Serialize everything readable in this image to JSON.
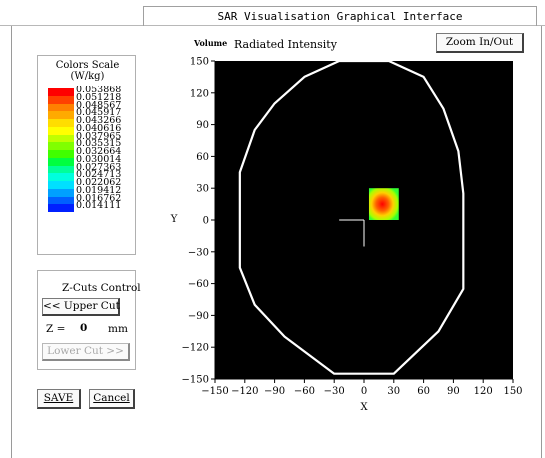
{
  "window": {
    "title": "SAR Visualisation Graphical Interface"
  },
  "color_scale": {
    "title_line1": "Colors Scale",
    "title_line2": "(W/kg)",
    "entries": [
      {
        "label": "0.053868",
        "color": "#ff0000"
      },
      {
        "label": "0.051218",
        "color": "#ff4000"
      },
      {
        "label": "0.048567",
        "color": "#ff8000"
      },
      {
        "label": "0.045917",
        "color": "#ffaa00"
      },
      {
        "label": "0.043266",
        "color": "#ffdd00"
      },
      {
        "label": "0.040616",
        "color": "#ffff00"
      },
      {
        "label": "0.037965",
        "color": "#bfff00"
      },
      {
        "label": "0.035315",
        "color": "#80ff00"
      },
      {
        "label": "0.032664",
        "color": "#40ff00"
      },
      {
        "label": "0.030014",
        "color": "#00ff40"
      },
      {
        "label": "0.027363",
        "color": "#00ff99"
      },
      {
        "label": "0.024713",
        "color": "#00ffdd"
      },
      {
        "label": "0.022062",
        "color": "#00e0ff"
      },
      {
        "label": "0.019412",
        "color": "#00a0ff"
      },
      {
        "label": "0.016762",
        "color": "#0060ff"
      },
      {
        "label": "0.014111",
        "color": "#0020ff"
      }
    ]
  },
  "zcuts": {
    "title": "Z-Cuts Control",
    "upper_label": "<< Upper Cut",
    "z_prefix": "Z =",
    "z_value": "0",
    "z_unit": "mm",
    "lower_label": "Lower Cut >>"
  },
  "actions": {
    "save_label": "SAVE",
    "cancel_label": "Cancel"
  },
  "header": {
    "volume_label": "Volume",
    "quantity_label": "Radiated Intensity",
    "zoom_label": "Zoom In/Out"
  },
  "chart_data": {
    "type": "heatmap",
    "title": "",
    "xlabel": "X",
    "ylabel": "Y",
    "xlim": [
      -150,
      150
    ],
    "ylim": [
      -150,
      150
    ],
    "xticks": [
      -150,
      -120,
      -90,
      -60,
      -30,
      0,
      30,
      60,
      90,
      120,
      150
    ],
    "yticks": [
      -150,
      -120,
      -90,
      -60,
      -30,
      0,
      30,
      60,
      90,
      120,
      150
    ],
    "background": "#000000",
    "outline_color": "#ffffff",
    "outline": [
      [
        -25,
        150
      ],
      [
        25,
        150
      ],
      [
        60,
        135
      ],
      [
        80,
        105
      ],
      [
        95,
        65
      ],
      [
        100,
        25
      ],
      [
        100,
        -65
      ],
      [
        75,
        -105
      ],
      [
        30,
        -145
      ],
      [
        -30,
        -145
      ],
      [
        -80,
        -110
      ],
      [
        -110,
        -80
      ],
      [
        -125,
        -45
      ],
      [
        -125,
        45
      ],
      [
        -110,
        85
      ],
      [
        -90,
        110
      ],
      [
        -60,
        135
      ]
    ],
    "crosshair": {
      "x": 0,
      "y": 0,
      "x_from": -25,
      "y_to": -25
    },
    "hotspot": {
      "x_range": [
        5,
        35
      ],
      "y_range": [
        0,
        30
      ],
      "peak": [
        19,
        15
      ],
      "edge_color": "#33ff33",
      "peak_color": "#ff0000"
    }
  }
}
